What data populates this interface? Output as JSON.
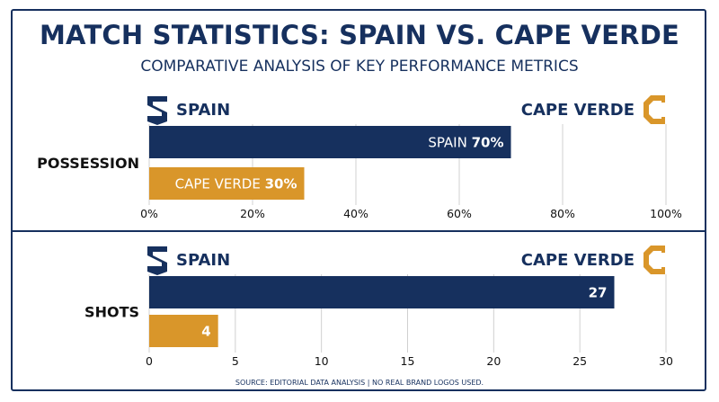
{
  "header": {
    "title": "MATCH STATISTICS: SPAIN VS. CAPE VERDE",
    "subtitle": "COMPARATIVE ANALYSIS OF KEY PERFORMANCE METRICS"
  },
  "footer": {
    "source": "SOURCE: EDITORIAL DATA ANALYSIS | NO REAL BRAND LOGOS USED."
  },
  "colors": {
    "spain": "#16305e",
    "cape_verde": "#d9962a",
    "grid": "#d0d0d0"
  },
  "teams": {
    "spain": {
      "name": "SPAIN",
      "icon": "spain-shield-icon"
    },
    "cape_verde": {
      "name": "CAPE VERDE",
      "icon": "cape-verde-c-icon"
    }
  },
  "chart_data": [
    {
      "type": "bar",
      "orientation": "horizontal",
      "metric": "POSSESSION",
      "categories": [
        "SPAIN",
        "CAPE VERDE"
      ],
      "values": [
        70,
        30
      ],
      "unit": "%",
      "data_labels": [
        {
          "prefix": "SPAIN ",
          "value": "70%"
        },
        {
          "prefix": "CAPE VERDE ",
          "value": "30%"
        }
      ],
      "xlim": [
        0,
        100
      ],
      "ticks": [
        0,
        20,
        40,
        60,
        80,
        100
      ],
      "tick_labels": [
        "0%",
        "20%",
        "40%",
        "60%",
        "80%",
        "100%"
      ],
      "grid": true
    },
    {
      "type": "bar",
      "orientation": "horizontal",
      "metric": "SHOTS",
      "categories": [
        "SPAIN",
        "CAPE VERDE"
      ],
      "values": [
        27,
        4
      ],
      "data_labels": [
        {
          "prefix": "",
          "value": "27"
        },
        {
          "prefix": "",
          "value": "4"
        }
      ],
      "xlim": [
        0,
        30
      ],
      "ticks": [
        0,
        5,
        10,
        15,
        20,
        25,
        30
      ],
      "tick_labels": [
        "0",
        "5",
        "10",
        "15",
        "20",
        "25",
        "30"
      ],
      "grid": true
    }
  ]
}
